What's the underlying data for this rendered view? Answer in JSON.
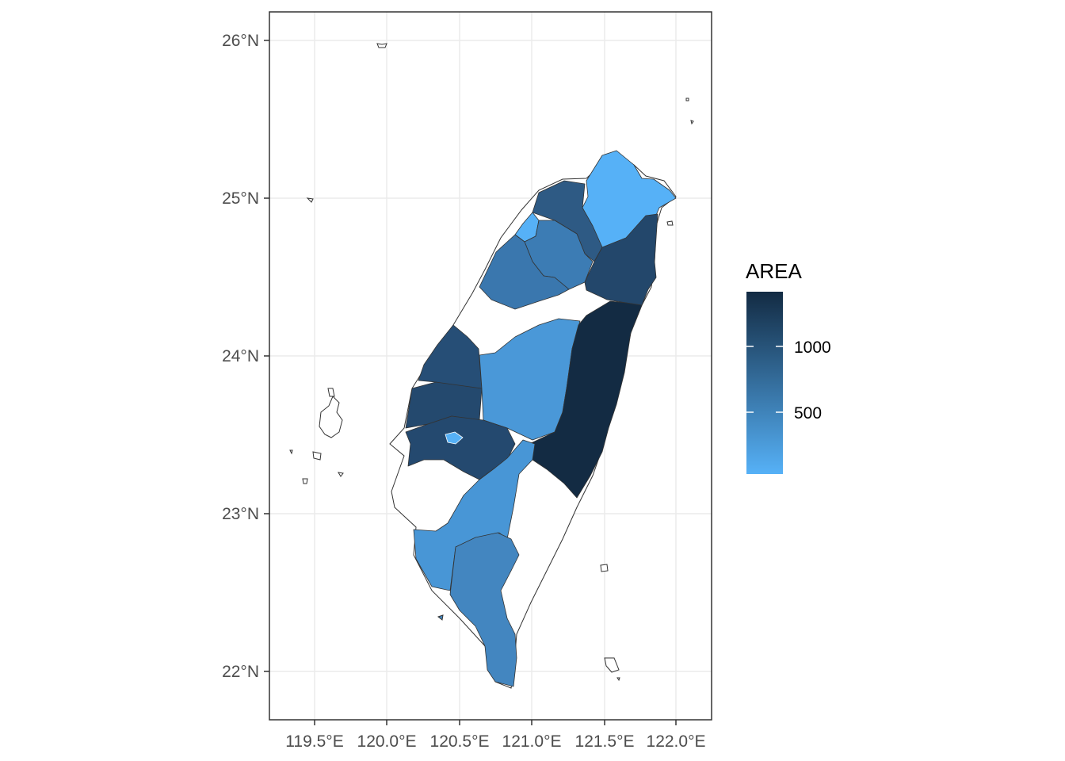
{
  "map": {
    "x_ticks": [
      "119.5°E",
      "120.0°E",
      "120.5°E",
      "121.0°E",
      "121.5°E",
      "122.0°E"
    ],
    "y_ticks": [
      "26°N",
      "25°N",
      "24°N",
      "23°N",
      "22°N"
    ],
    "legend": {
      "title": "AREA",
      "labels": [
        "1000",
        "500"
      ]
    },
    "colors": {
      "scale_low": "#56B1F7",
      "scale_high": "#132B43",
      "missing_fill": "#ffffff",
      "grid": "#ebebeb",
      "border": "#333333"
    },
    "regions": [
      {
        "name": "north-tip",
        "area_class": "low",
        "fill": "#56B1F7"
      },
      {
        "name": "north-coast",
        "area_class": "mid-high",
        "fill": "#2E5A84"
      },
      {
        "name": "northwest-small",
        "area_class": "low",
        "fill": "#56B1F7"
      },
      {
        "name": "northwest-mid",
        "area_class": "mid",
        "fill": "#3C7CB4"
      },
      {
        "name": "north-narrow",
        "area_class": "mid-high",
        "fill": "#2D5781"
      },
      {
        "name": "northeast",
        "area_class": "high",
        "fill": "#23476B"
      },
      {
        "name": "northwest-large",
        "area_class": "mid",
        "fill": "#3A77AE"
      },
      {
        "name": "central-west",
        "area_class": "high",
        "fill": "#264E76"
      },
      {
        "name": "central-west-2",
        "area_class": "high",
        "fill": "#24496E"
      },
      {
        "name": "central",
        "area_class": "mid-low",
        "fill": "#4A98D8"
      },
      {
        "name": "east",
        "area_class": "max",
        "fill": "#132B43"
      },
      {
        "name": "south-west",
        "area_class": "high",
        "fill": "#24496F"
      },
      {
        "name": "south-west-small",
        "area_class": "low",
        "fill": "#56B1F7"
      },
      {
        "name": "south",
        "area_class": "mid-low",
        "fill": "#4896D6"
      },
      {
        "name": "south-tip",
        "area_class": "mid",
        "fill": "#4386C0"
      }
    ]
  }
}
